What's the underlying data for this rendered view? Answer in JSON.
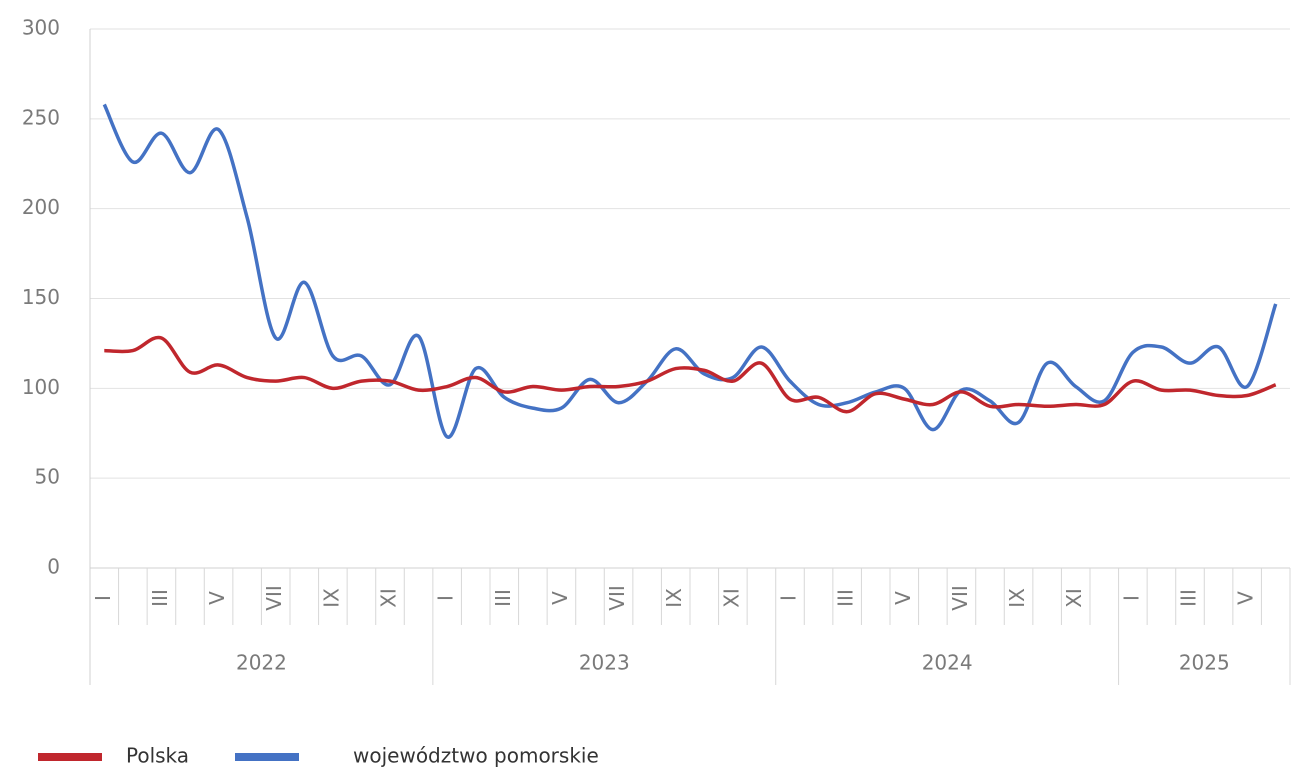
{
  "chart_data": {
    "type": "line",
    "categories": [
      "I",
      null,
      "III",
      null,
      "V",
      null,
      "VII",
      null,
      "IX",
      null,
      "XI",
      null,
      "I",
      null,
      "III",
      null,
      "V",
      null,
      "VII",
      null,
      "IX",
      null,
      "XI",
      null,
      "I",
      null,
      "III",
      null,
      "V",
      null,
      "VII",
      null,
      "IX",
      null,
      "XI",
      null,
      "I",
      null,
      "III",
      null,
      "V",
      null
    ],
    "years": [
      "2022",
      "2023",
      "2024",
      "2025"
    ],
    "series": [
      {
        "name": "Polska",
        "color": "#c0272d",
        "values": [
          121,
          121,
          128,
          109,
          113,
          106,
          104,
          106,
          100,
          104,
          104,
          99,
          101,
          106,
          98,
          101,
          99,
          101,
          101,
          104,
          111,
          110,
          104,
          114,
          94,
          95,
          87,
          97,
          94,
          91,
          98,
          90,
          91,
          90,
          91,
          91,
          104,
          99,
          99,
          96,
          96,
          102
        ]
      },
      {
        "name": "województwo pomorskie",
        "color": "#4472c4",
        "values": [
          258,
          226,
          242,
          220,
          244,
          195,
          128,
          159,
          118,
          118,
          102,
          129,
          73,
          111,
          95,
          89,
          89,
          105,
          92,
          104,
          122,
          108,
          106,
          123,
          104,
          91,
          92,
          98,
          100,
          77,
          99,
          93,
          81,
          114,
          101,
          93,
          120,
          123,
          114,
          123,
          101,
          147
        ]
      }
    ],
    "ylim": [
      0,
      300
    ],
    "yticks": [
      0,
      50,
      100,
      150,
      200,
      250,
      300
    ],
    "grid": true
  }
}
